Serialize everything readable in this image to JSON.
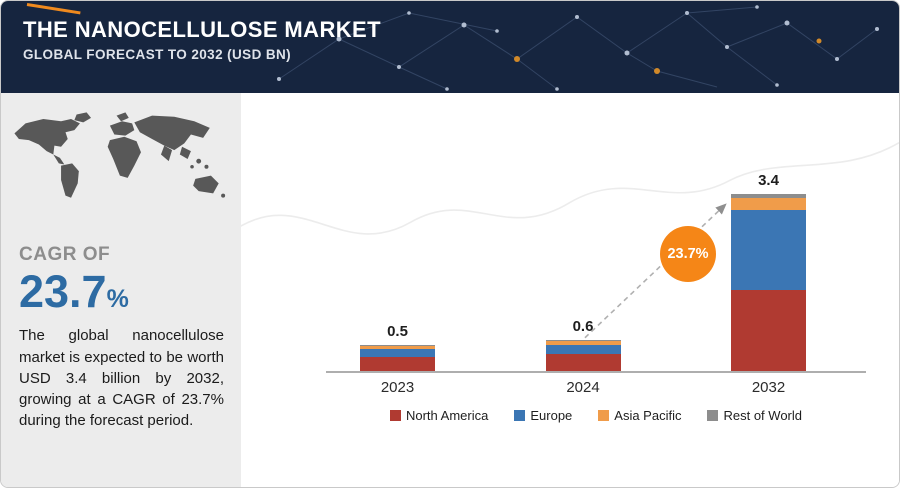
{
  "header": {
    "title": "THE NANOCELLULOSE MARKET",
    "subtitle": "GLOBAL FORECAST TO 2032 (USD BN)"
  },
  "sidebar": {
    "cagr_label": "CAGR OF",
    "cagr_value": "23.7",
    "cagr_unit": "%",
    "description": "The global nanocellulose market is expected to be worth USD 3.4 billion by 2032, growing at a CAGR of 23.7% during the forecast period."
  },
  "chart_data": {
    "type": "bar",
    "stacked": true,
    "title": "",
    "unit": "USD BN",
    "categories": [
      "2023",
      "2024",
      "2032"
    ],
    "totals": [
      0.5,
      0.6,
      3.4
    ],
    "total_labels": [
      "0.5",
      "0.6",
      "3.4"
    ],
    "series": [
      {
        "name": "North America",
        "color": "#b03a31",
        "values": [
          0.27,
          0.32,
          1.55
        ]
      },
      {
        "name": "Europe",
        "color": "#3b76b4",
        "values": [
          0.16,
          0.19,
          1.55
        ]
      },
      {
        "name": "Asia Pacific",
        "color": "#f09c4a",
        "values": [
          0.05,
          0.06,
          0.22
        ]
      },
      {
        "name": "Rest of World",
        "color": "#8d8d8d",
        "values": [
          0.02,
          0.03,
          0.08
        ]
      }
    ],
    "growth_badge": "23.7%",
    "legend_position": "bottom",
    "ylim": [
      0,
      3.6
    ]
  },
  "colors": {
    "header_bg": "#16253f",
    "accent_orange": "#f28a1e",
    "badge_orange": "#f58617",
    "cagr_blue": "#2d6ba3",
    "sidebar_bg": "#ececec"
  }
}
